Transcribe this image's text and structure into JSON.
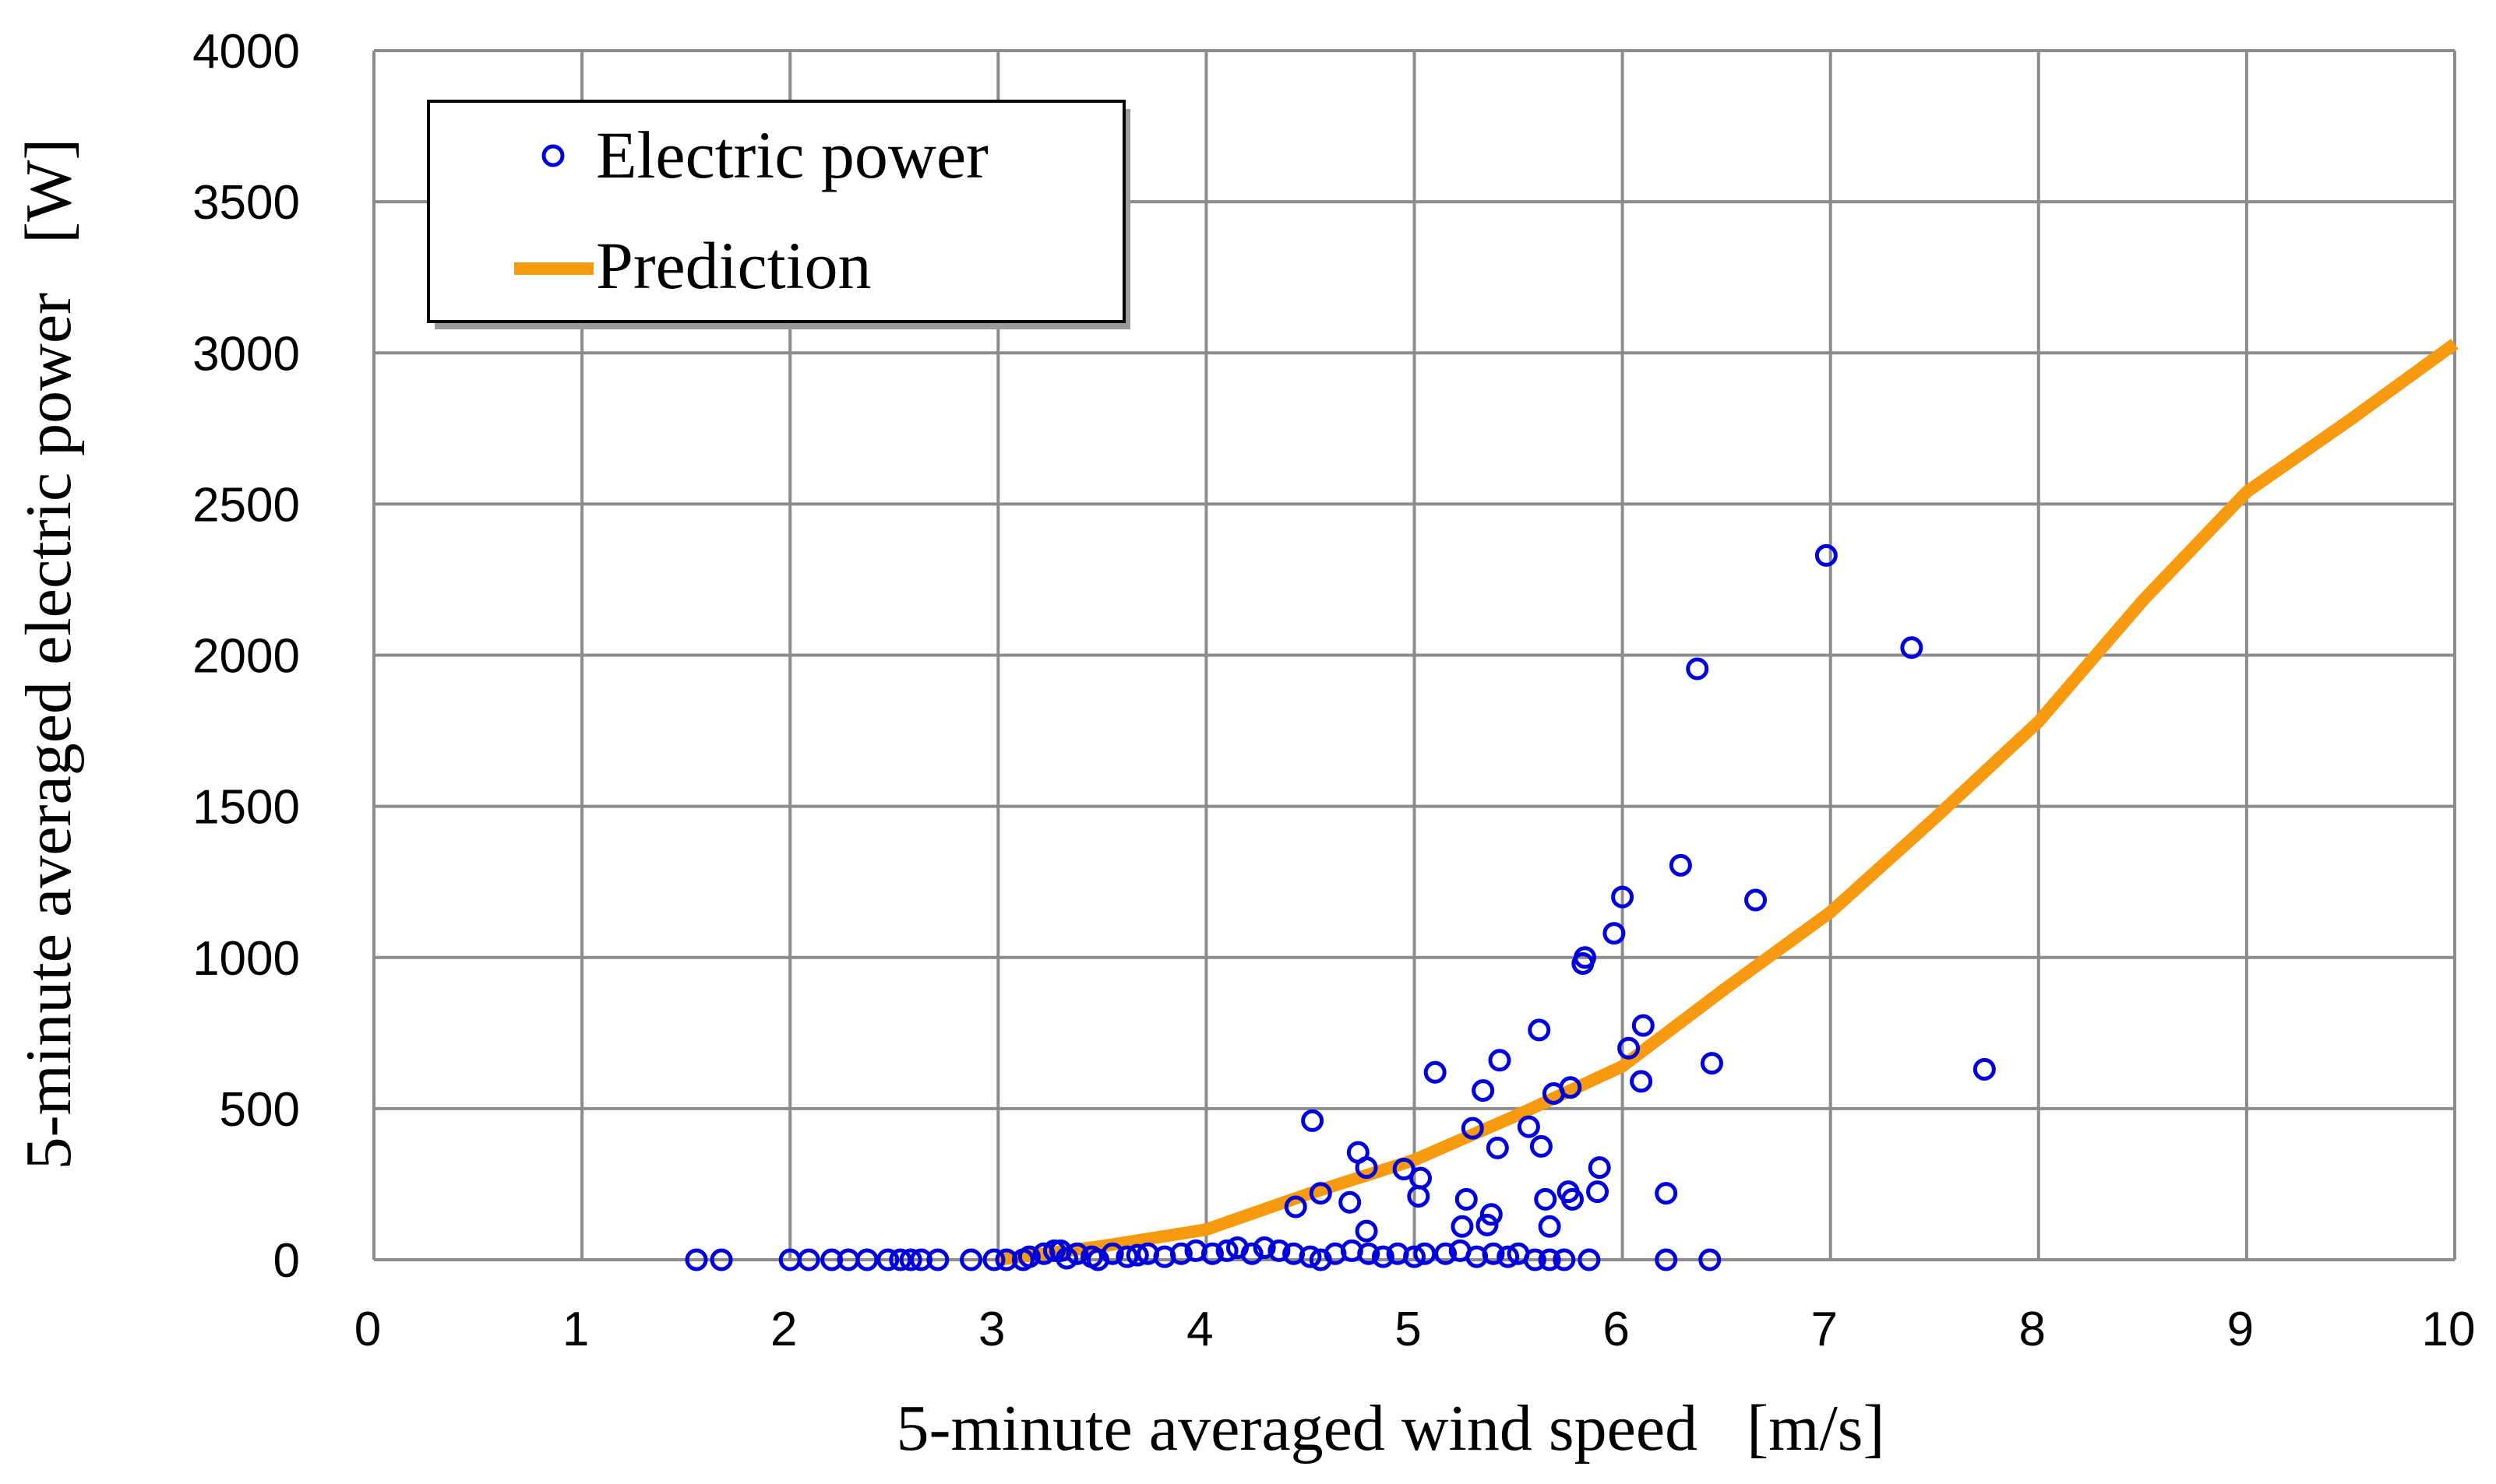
{
  "chart_data": {
    "type": "scatter",
    "title": "",
    "xlabel": "5-minute averaged wind speed   [m/s]",
    "ylabel": "5-minute averaged electric power   [W]",
    "xlim": [
      0,
      10
    ],
    "ylim": [
      0,
      4000
    ],
    "x_ticks": [
      "0",
      "1",
      "2",
      "3",
      "4",
      "5",
      "6",
      "7",
      "8",
      "9",
      "10"
    ],
    "y_ticks": [
      "0",
      "500",
      "1000",
      "1500",
      "2000",
      "2500",
      "3000",
      "3500",
      "4000"
    ],
    "grid": true,
    "legend": {
      "position": "top-left",
      "entries": [
        "Electric power",
        "Prediction"
      ]
    },
    "colors": {
      "scatter": "#0000dd",
      "line": "#f79a0f"
    },
    "series": [
      {
        "name": "Electric power",
        "type": "scatter",
        "x": [
          1.55,
          1.67,
          2.0,
          2.09,
          2.2,
          2.28,
          2.37,
          2.47,
          2.53,
          2.58,
          2.63,
          2.71,
          2.87,
          2.98,
          3.04,
          3.12,
          3.15,
          3.22,
          3.27,
          3.3,
          3.33,
          3.38,
          3.45,
          3.48,
          3.55,
          3.62,
          3.67,
          3.72,
          3.8,
          3.88,
          3.95,
          4.03,
          4.1,
          4.15,
          4.22,
          4.28,
          4.35,
          4.42,
          4.5,
          4.55,
          4.62,
          4.7,
          4.78,
          4.85,
          4.92,
          5.0,
          5.05,
          5.15,
          5.22,
          5.3,
          5.38,
          5.45,
          5.5,
          5.58,
          5.65,
          5.72,
          5.84,
          6.21,
          6.42,
          4.43,
          4.51,
          4.55,
          4.69,
          4.73,
          4.77,
          4.77,
          4.95,
          5.02,
          5.03,
          5.1,
          5.23,
          5.25,
          5.28,
          5.33,
          5.35,
          5.37,
          5.4,
          5.41,
          5.55,
          5.6,
          5.61,
          5.63,
          5.65,
          5.67,
          5.74,
          5.75,
          5.76,
          5.81,
          5.82,
          5.88,
          5.89,
          5.96,
          6.0,
          6.03,
          6.09,
          6.1,
          6.21,
          6.28,
          6.36,
          6.43,
          6.64,
          6.98,
          7.39,
          7.74
        ],
        "y": [
          0,
          0,
          0,
          0,
          0,
          0,
          0,
          0,
          0,
          0,
          0,
          0,
          0,
          0,
          0,
          0,
          10,
          20,
          30,
          30,
          5,
          20,
          10,
          0,
          20,
          10,
          15,
          20,
          10,
          20,
          30,
          20,
          30,
          40,
          20,
          40,
          30,
          20,
          10,
          0,
          20,
          30,
          20,
          10,
          20,
          10,
          20,
          20,
          30,
          10,
          20,
          10,
          20,
          0,
          0,
          0,
          0,
          0,
          0,
          175,
          460,
          220,
          190,
          355,
          95,
          305,
          300,
          210,
          270,
          620,
          110,
          200,
          435,
          560,
          115,
          150,
          370,
          660,
          440,
          760,
          375,
          200,
          110,
          550,
          225,
          570,
          200,
          980,
          1000,
          225,
          305,
          1080,
          1200,
          700,
          590,
          775,
          220,
          1305,
          1955,
          650,
          1190,
          2330,
          2025,
          630
        ]
      },
      {
        "name": "Prediction",
        "type": "line",
        "x": [
          3.0,
          3.5,
          4.0,
          4.5,
          5.0,
          5.5,
          6.0,
          6.5,
          7.0,
          7.5,
          8.0,
          8.5,
          9.0,
          9.5,
          10.0
        ],
        "y": [
          0,
          45,
          100,
          220,
          330,
          480,
          640,
          900,
          1150,
          1460,
          1780,
          2180,
          2540,
          2780,
          3030
        ]
      }
    ]
  }
}
